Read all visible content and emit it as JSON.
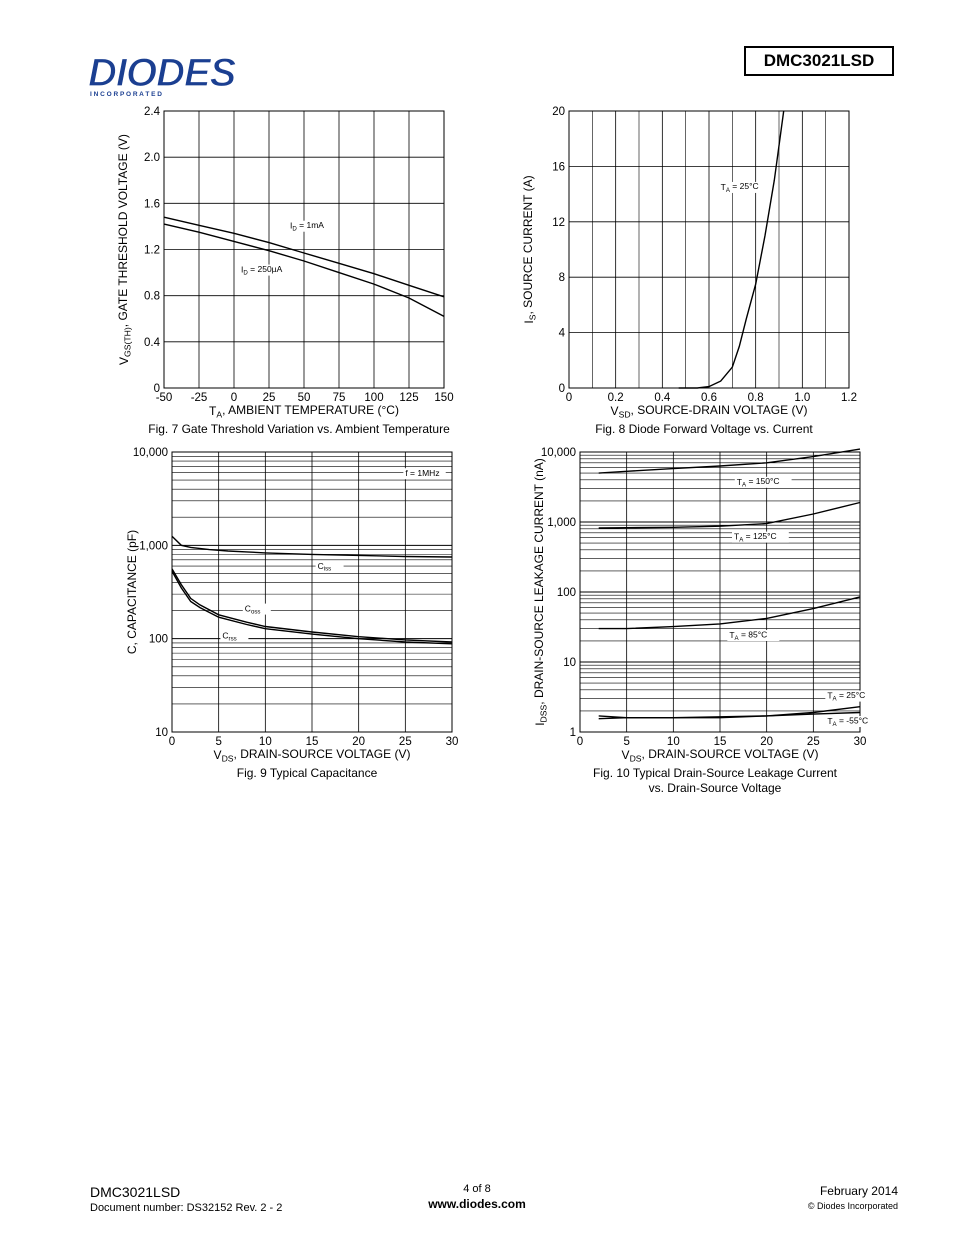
{
  "header": {
    "logo_text": "DIODES",
    "logo_subtext": "I N C O R P O R A T E D",
    "part_number": "DMC3021LSD"
  },
  "charts": [
    {
      "id": "fig7",
      "type": "line",
      "title": "Fig. 7 Gate Threshold Variation vs. Ambient Temperature",
      "xlabel": "T_A, AMBIENT TEMPERATURE (°C)",
      "ylabel": "V_GS(TH), GATE THRESHOLD VOLTAGE (V)",
      "xlim": [
        -50,
        150
      ],
      "ylim": [
        0,
        2.4
      ],
      "xticks": [
        -50,
        -25,
        0,
        25,
        50,
        75,
        100,
        125,
        150
      ],
      "yticks": [
        0,
        0.4,
        0.8,
        1.2,
        1.6,
        2.0,
        2.4
      ],
      "xticklabels": [
        "-50",
        "-25",
        "0",
        "25",
        "50",
        "75",
        "100",
        "125",
        "150"
      ],
      "yticklabels": [
        "0",
        "0.4",
        "0.8",
        "1.2",
        "1.6",
        "2.0",
        "2.4"
      ],
      "series": [
        {
          "name": "I_D = 1mA",
          "x": [
            -50,
            -25,
            0,
            25,
            50,
            75,
            100,
            125,
            150
          ],
          "y": [
            1.48,
            1.41,
            1.34,
            1.26,
            1.17,
            1.08,
            0.99,
            0.89,
            0.79
          ]
        },
        {
          "name": "I_D = 250µA",
          "x": [
            -50,
            -25,
            0,
            25,
            50,
            75,
            100,
            125,
            150
          ],
          "y": [
            1.42,
            1.35,
            1.27,
            1.19,
            1.1,
            1.0,
            0.9,
            0.78,
            0.62
          ]
        }
      ],
      "annotations": [
        {
          "text": "I_D = 1mA",
          "x": 40,
          "y": 1.38
        },
        {
          "text": "I_D = 250µA",
          "x": 5,
          "y": 1.0
        }
      ]
    },
    {
      "id": "fig8",
      "type": "line",
      "title": "Fig. 8 Diode Forward Voltage vs. Current",
      "xlabel": "V_SD, SOURCE-DRAIN VOLTAGE (V)",
      "ylabel": "I_S, SOURCE CURRENT (A)",
      "xlim": [
        0,
        1.2
      ],
      "ylim": [
        0,
        20
      ],
      "xticks": [
        0,
        0.2,
        0.4,
        0.6,
        0.8,
        1.0,
        1.2
      ],
      "yticks": [
        0,
        4,
        8,
        12,
        16,
        20
      ],
      "xticklabels": [
        "0",
        "0.2",
        "0.4",
        "0.6",
        "0.8",
        "1.0",
        "1.2"
      ],
      "yticklabels": [
        "0",
        "4",
        "8",
        "12",
        "16",
        "20"
      ],
      "series": [
        {
          "name": "T_A = 25°C",
          "x": [
            0.47,
            0.55,
            0.6,
            0.65,
            0.7,
            0.73,
            0.76,
            0.8,
            0.84,
            0.88,
            0.92
          ],
          "y": [
            0,
            0,
            0.1,
            0.5,
            1.5,
            3,
            5,
            7.5,
            11,
            15,
            20
          ]
        }
      ],
      "annotations": [
        {
          "text": "T_A = 25°C",
          "x": 0.65,
          "y": 14.3
        }
      ]
    },
    {
      "id": "fig9",
      "type": "line",
      "scale_y": "log",
      "title": "Fig. 9 Typical Capacitance",
      "xlabel": "V_DS, DRAIN-SOURCE VOLTAGE (V)",
      "ylabel": "C, CAPACITANCE (pF)",
      "xlim": [
        0,
        30
      ],
      "ylim": [
        10,
        10000
      ],
      "xticks": [
        0,
        5,
        10,
        15,
        20,
        25,
        30
      ],
      "yticks": [
        10,
        100,
        1000,
        10000
      ],
      "xticklabels": [
        "0",
        "5",
        "10",
        "15",
        "20",
        "25",
        "30"
      ],
      "yticklabels": [
        "10",
        "100",
        "1,000",
        "10,000"
      ],
      "series": [
        {
          "name": "C_iss",
          "x": [
            0,
            1,
            2,
            4,
            6,
            8,
            10,
            15,
            20,
            25,
            30
          ],
          "y": [
            1250,
            1000,
            950,
            900,
            870,
            850,
            830,
            800,
            780,
            760,
            750
          ]
        },
        {
          "name": "C_oss",
          "x": [
            0,
            1,
            2,
            3,
            5,
            8,
            10,
            15,
            20,
            25,
            30
          ],
          "y": [
            560,
            380,
            270,
            230,
            180,
            150,
            135,
            118,
            105,
            97,
            92
          ]
        },
        {
          "name": "C_rss",
          "x": [
            0,
            1,
            2,
            3,
            5,
            8,
            10,
            15,
            20,
            25,
            30
          ],
          "y": [
            530,
            350,
            250,
            215,
            170,
            142,
            128,
            112,
            100,
            92,
            88
          ]
        }
      ],
      "annotations": [
        {
          "text": "f = 1MHz",
          "x": 25,
          "y": 5500
        },
        {
          "text": "C_iss",
          "x": 15.6,
          "y": 560
        },
        {
          "text": "C_oss",
          "x": 7.8,
          "y": 195
        },
        {
          "text": "C_rss",
          "x": 5.4,
          "y": 100
        }
      ]
    },
    {
      "id": "fig10",
      "type": "line",
      "scale_y": "log",
      "title": "Fig. 10 Typical Drain-Source Leakage Current",
      "title_line2": "vs. Drain-Source Voltage",
      "xlabel": "V_DS, DRAIN-SOURCE VOLTAGE (V)",
      "ylabel": "I_DSS, DRAIN-SOURCE LEAKAGE CURRENT (nA)",
      "xlim": [
        0,
        30
      ],
      "ylim": [
        1,
        10000
      ],
      "xticks": [
        0,
        5,
        10,
        15,
        20,
        25,
        30
      ],
      "yticks": [
        1,
        10,
        100,
        1000,
        10000
      ],
      "xticklabels": [
        "0",
        "5",
        "10",
        "15",
        "20",
        "25",
        "30"
      ],
      "yticklabels": [
        "1",
        "10",
        "100",
        "1,000",
        "10,000"
      ],
      "series": [
        {
          "name": "T_A = 150°C",
          "x": [
            2,
            5,
            10,
            15,
            20,
            25,
            30
          ],
          "y": [
            5000,
            5300,
            5800,
            6300,
            7000,
            8600,
            11000
          ]
        },
        {
          "name": "T_A = 125°C",
          "x": [
            2,
            5,
            10,
            15,
            20,
            25,
            30
          ],
          "y": [
            820,
            830,
            840,
            870,
            950,
            1300,
            1900
          ]
        },
        {
          "name": "T_A = 85°C",
          "x": [
            2,
            5,
            10,
            15,
            20,
            25,
            30
          ],
          "y": [
            30,
            30,
            32,
            35,
            42,
            58,
            85
          ]
        },
        {
          "name": "T_A = 25°C",
          "x": [
            2,
            5,
            10,
            15,
            20,
            25,
            30
          ],
          "y": [
            1.7,
            1.6,
            1.6,
            1.6,
            1.7,
            1.9,
            2.3
          ]
        },
        {
          "name": "T_A = -55°C",
          "x": [
            2,
            5,
            10,
            15,
            20,
            25,
            30
          ],
          "y": [
            1.55,
            1.6,
            1.6,
            1.65,
            1.7,
            1.8,
            1.9
          ]
        }
      ],
      "annotations": [
        {
          "text": "T_A = 150°C",
          "x": 16.8,
          "y": 3400
        },
        {
          "text": "T_A = 125°C",
          "x": 16.5,
          "y": 560
        },
        {
          "text": "T_A = 85°C",
          "x": 16.0,
          "y": 22
        },
        {
          "text": "T_A = 25°C",
          "x": 26.5,
          "y": 3.0
        },
        {
          "text": "T_A = -55°C",
          "x": 26.5,
          "y": 1.3
        }
      ]
    }
  ],
  "footer": {
    "part_number": "DMC3021LSD",
    "doc_number": "Document number: DS32152 Rev. 2 - 2",
    "page": "4 of 8",
    "url": "www.diodes.com",
    "date": "February 2014",
    "copyright": "© Diodes Incorporated"
  }
}
